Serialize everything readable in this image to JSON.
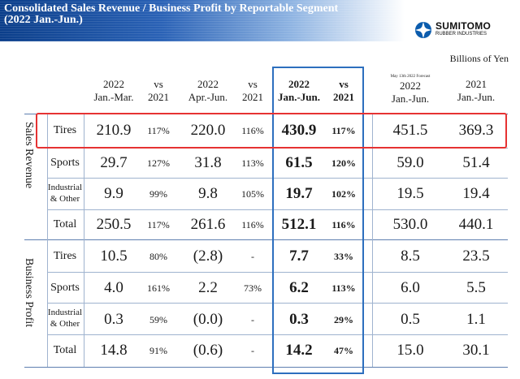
{
  "header": {
    "title": "Consolidated Sales Revenue / Business Profit by Reportable Segment",
    "subtitle": "(2022 Jan.-Jun.)"
  },
  "logo": {
    "name": "SUMITOMO",
    "sub": "RUBBER INDUSTRIES"
  },
  "unit": "Billions of Yen",
  "columns": {
    "c1": {
      "l1": "2022",
      "l2": "Jan.-Mar."
    },
    "c2": {
      "l1": "vs",
      "l2": "2021"
    },
    "c3": {
      "l1": "2022",
      "l2": "Apr.-Jun."
    },
    "c4": {
      "l1": "vs",
      "l2": "2021"
    },
    "c5": {
      "l1": "2022",
      "l2": "Jan.-Jun."
    },
    "c6": {
      "l1": "vs",
      "l2": "2021"
    },
    "c7": {
      "note": "May 13th 2022 Forecast",
      "l1": "2022",
      "l2": "Jan.-Jun."
    },
    "c8": {
      "l1": "2021",
      "l2": "Jan.-Jun."
    }
  },
  "groups": {
    "sales": "Sales Revenue",
    "profit": "Business Profit"
  },
  "rows": {
    "sales_tires": {
      "label": "Tires",
      "v": [
        "210.9",
        "117%",
        "220.0",
        "116%",
        "430.9",
        "117%",
        "451.5",
        "369.3"
      ]
    },
    "sales_sports": {
      "label": "Sports",
      "v": [
        "29.7",
        "127%",
        "31.8",
        "113%",
        "61.5",
        "120%",
        "59.0",
        "51.4"
      ]
    },
    "sales_ind": {
      "label1": "Industrial",
      "label2": "& Other",
      "v": [
        "9.9",
        "99%",
        "9.8",
        "105%",
        "19.7",
        "102%",
        "19.5",
        "19.4"
      ]
    },
    "sales_total": {
      "label": "Total",
      "v": [
        "250.5",
        "117%",
        "261.6",
        "116%",
        "512.1",
        "116%",
        "530.0",
        "440.1"
      ]
    },
    "profit_tires": {
      "label": "Tires",
      "v": [
        "10.5",
        "80%",
        "(2.8)",
        "-",
        "7.7",
        "33%",
        "8.5",
        "23.5"
      ]
    },
    "profit_sports": {
      "label": "Sports",
      "v": [
        "4.0",
        "161%",
        "2.2",
        "73%",
        "6.2",
        "113%",
        "6.0",
        "5.5"
      ]
    },
    "profit_ind": {
      "label1": "Industrial",
      "label2": "& Other",
      "v": [
        "0.3",
        "59%",
        "(0.0)",
        "-",
        "0.3",
        "29%",
        "0.5",
        "1.1"
      ]
    },
    "profit_total": {
      "label": "Total",
      "v": [
        "14.8",
        "91%",
        "(0.6)",
        "-",
        "14.2",
        "47%",
        "15.0",
        "30.1"
      ]
    }
  },
  "colors": {
    "banner": "#0b3e8a",
    "highlight_box": "#2d6fbe",
    "emphasis_box": "#e63232",
    "rule": "#9fb3cf"
  }
}
